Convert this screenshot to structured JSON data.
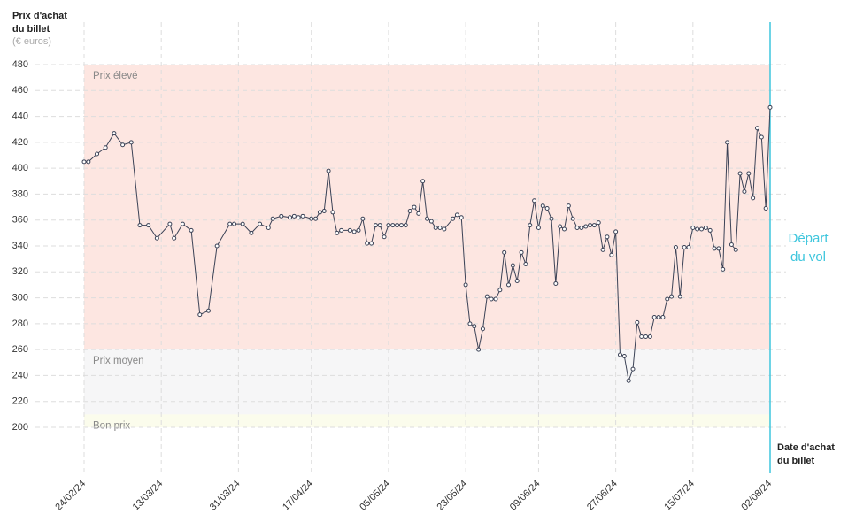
{
  "chart_data": {
    "type": "line",
    "y_label": [
      "Prix d'achat",
      "du billet"
    ],
    "y_unit": "(€ euros)",
    "x_label": [
      "Date d'achat",
      "du billet"
    ],
    "annotation": [
      "Départ",
      "du vol"
    ],
    "annotation_x": "02/08/24",
    "annotation_color": "#3ec6dd",
    "bands": [
      {
        "label": "Prix élevé",
        "from": 260,
        "to": 480,
        "color": "#fde6e1"
      },
      {
        "label": "Prix moyen",
        "from": 210,
        "to": 260,
        "color": "#f6f6f7"
      },
      {
        "label": "Bon prix",
        "from": 200,
        "to": 210,
        "color": "#fbfcec"
      }
    ],
    "ylim": [
      200,
      480
    ],
    "yticks": [
      200,
      220,
      240,
      260,
      280,
      300,
      320,
      340,
      360,
      380,
      400,
      420,
      440,
      460,
      480
    ],
    "xlim": [
      "24/02/24",
      "02/08/24"
    ],
    "xticks": [
      "24/02/24",
      "13/03/24",
      "31/03/24",
      "17/04/24",
      "05/05/24",
      "23/05/24",
      "09/06/24",
      "27/06/24",
      "15/07/24",
      "02/08/24"
    ],
    "grid": true,
    "x": [
      "24/02/24",
      "25/02/24",
      "27/02/24",
      "29/02/24",
      "02/03/24",
      "04/03/24",
      "06/03/24",
      "08/03/24",
      "10/03/24",
      "12/03/24",
      "15/03/24",
      "16/03/24",
      "18/03/24",
      "20/03/24",
      "22/03/24",
      "24/03/24",
      "26/03/24",
      "29/03/24",
      "30/03/24",
      "01/04/24",
      "03/04/24",
      "05/04/24",
      "07/04/24",
      "08/04/24",
      "10/04/24",
      "12/04/24",
      "13/04/24",
      "14/04/24",
      "15/04/24",
      "17/04/24",
      "18/04/24",
      "19/04/24",
      "20/04/24",
      "21/04/24",
      "22/04/24",
      "23/04/24",
      "24/04/24",
      "26/04/24",
      "27/04/24",
      "28/04/24",
      "29/04/24",
      "30/04/24",
      "01/05/24",
      "02/05/24",
      "03/05/24",
      "04/05/24",
      "05/05/24",
      "06/05/24",
      "07/05/24",
      "08/05/24",
      "09/05/24",
      "10/05/24",
      "11/05/24",
      "12/05/24",
      "13/05/24",
      "14/05/24",
      "15/05/24",
      "16/05/24",
      "17/05/24",
      "18/05/24",
      "20/05/24",
      "21/05/24",
      "22/05/24",
      "23/05/24",
      "24/05/24",
      "25/05/24",
      "26/05/24",
      "27/05/24",
      "28/05/24",
      "29/05/24",
      "30/05/24",
      "31/05/24",
      "01/06/24",
      "02/06/24",
      "03/06/24",
      "04/06/24",
      "05/06/24",
      "06/06/24",
      "07/06/24",
      "08/06/24",
      "09/06/24",
      "10/06/24",
      "11/06/24",
      "12/06/24",
      "13/06/24",
      "14/06/24",
      "15/06/24",
      "16/06/24",
      "17/06/24",
      "18/06/24",
      "19/06/24",
      "20/06/24",
      "21/06/24",
      "22/06/24",
      "23/06/24",
      "24/06/24",
      "25/06/24",
      "26/06/24",
      "27/06/24",
      "28/06/24",
      "29/06/24",
      "30/06/24",
      "01/07/24",
      "02/07/24",
      "03/07/24",
      "04/07/24",
      "05/07/24",
      "06/07/24",
      "07/07/24",
      "08/07/24",
      "09/07/24",
      "10/07/24",
      "11/07/24",
      "12/07/24",
      "13/07/24",
      "14/07/24",
      "15/07/24",
      "16/07/24",
      "17/07/24",
      "18/07/24",
      "19/07/24",
      "20/07/24",
      "21/07/24",
      "22/07/24",
      "23/07/24",
      "24/07/24",
      "25/07/24",
      "26/07/24",
      "27/07/24",
      "28/07/24",
      "29/07/24",
      "30/07/24",
      "31/07/24",
      "01/08/24",
      "02/08/24"
    ],
    "series": [
      {
        "name": "Prix",
        "color": "#3b4256",
        "values": [
          405,
          405,
          411,
          416,
          427,
          418,
          420,
          356,
          356,
          346,
          357,
          346,
          357,
          352,
          287,
          290,
          340,
          357,
          357,
          357,
          350,
          357,
          354,
          361,
          363,
          362,
          363,
          362,
          363,
          361,
          361,
          366,
          367,
          398,
          366,
          350,
          352,
          352,
          351,
          352,
          361,
          342,
          342,
          356,
          356,
          347,
          356,
          356,
          356,
          356,
          356,
          367,
          370,
          365,
          390,
          361,
          359,
          354,
          354,
          353,
          361,
          364,
          362,
          310,
          280,
          278,
          260,
          276,
          301,
          299,
          299,
          306,
          335,
          310,
          325,
          313,
          335,
          326,
          356,
          375,
          354,
          371,
          369,
          361,
          311,
          355,
          353,
          371,
          361,
          354,
          354,
          355,
          356,
          356,
          358,
          337,
          347,
          333,
          351,
          256,
          255,
          236,
          245,
          281,
          270,
          270,
          270,
          285,
          285,
          285,
          299,
          301,
          339,
          301,
          339,
          339,
          354,
          353,
          353,
          354,
          352,
          338,
          338,
          322,
          420,
          341,
          337,
          396,
          382,
          396,
          377,
          431,
          424,
          369,
          447
        ]
      }
    ]
  }
}
